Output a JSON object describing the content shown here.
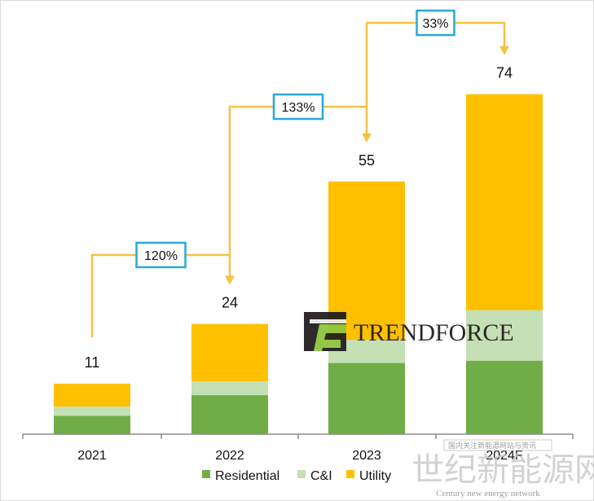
{
  "chart_data": {
    "type": "bar",
    "stacked": true,
    "categories": [
      "2021",
      "2022",
      "2023",
      "2024F"
    ],
    "totals": [
      11,
      24,
      55,
      74
    ],
    "series": [
      {
        "name": "Residential",
        "color": "#70ad47",
        "values": [
          4,
          8.5,
          15.5,
          16
        ]
      },
      {
        "name": "C&I",
        "color": "#c5e0b4",
        "values": [
          2,
          3,
          5,
          11
        ]
      },
      {
        "name": "Utility",
        "color": "#ffc000",
        "values": [
          5,
          12.5,
          34.5,
          47
        ]
      }
    ],
    "growth": [
      {
        "from": "2021",
        "to": "2022",
        "label": "120%"
      },
      {
        "from": "2022",
        "to": "2023",
        "label": "133%"
      },
      {
        "from": "2023",
        "to": "2024F",
        "label": "33%"
      }
    ],
    "ylim": [
      0,
      80
    ],
    "grid": false,
    "legend_position": "bottom",
    "arrow_color": "#f5c242",
    "growth_box_color": "#29a9d6"
  },
  "watermarks": {
    "brand": "TRENDFORCE",
    "site_cn": "世纪新能源网",
    "site_en": "Century new energy network",
    "tagline_cn": "国内关注新能源网站与资讯"
  }
}
